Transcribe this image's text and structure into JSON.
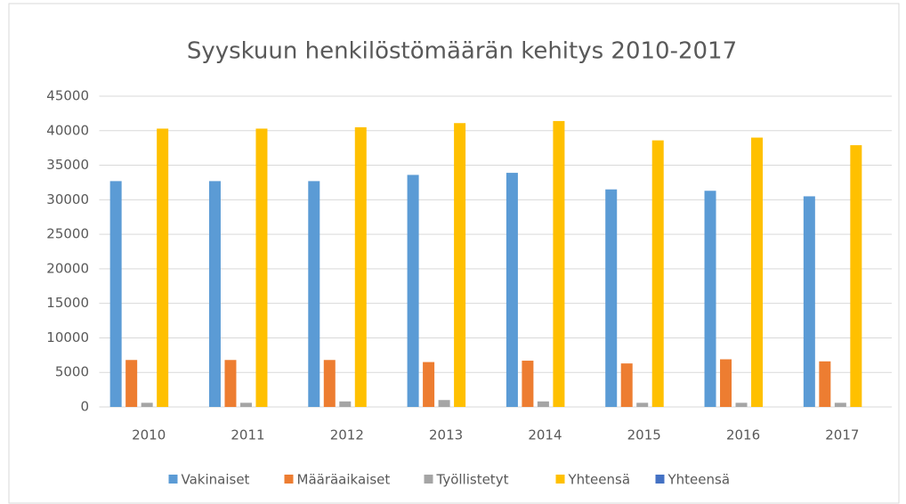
{
  "chart_data": {
    "type": "bar",
    "title": "Syyskuun henkilöstömäärän kehitys 2010-2017",
    "categories": [
      "2010",
      "2011",
      "2012",
      "2013",
      "2014",
      "2015",
      "2016",
      "2017"
    ],
    "series": [
      {
        "name": "Vakinaiset",
        "color": "#5b9bd5",
        "values": [
          32700,
          32700,
          32700,
          33600,
          33900,
          31500,
          31300,
          30500
        ]
      },
      {
        "name": "Määräaikaiset",
        "color": "#ed7d31",
        "values": [
          6800,
          6800,
          6800,
          6500,
          6700,
          6300,
          6900,
          6600
        ]
      },
      {
        "name": "Työllistetyt",
        "color": "#a5a5a5",
        "values": [
          600,
          600,
          800,
          1000,
          800,
          600,
          600,
          600
        ]
      },
      {
        "name": "Yhteensä",
        "color": "#ffc000",
        "values": [
          40300,
          40300,
          40500,
          41100,
          41400,
          38600,
          39000,
          37900
        ]
      },
      {
        "name": "Yhteensä",
        "color": "#4472c4",
        "values": [
          0,
          0,
          0,
          0,
          0,
          0,
          0,
          0
        ]
      }
    ],
    "ylim": [
      0,
      45000
    ],
    "yticks": [
      0,
      5000,
      10000,
      15000,
      20000,
      25000,
      30000,
      35000,
      40000,
      45000
    ],
    "grid": true,
    "legend": "bottom"
  }
}
